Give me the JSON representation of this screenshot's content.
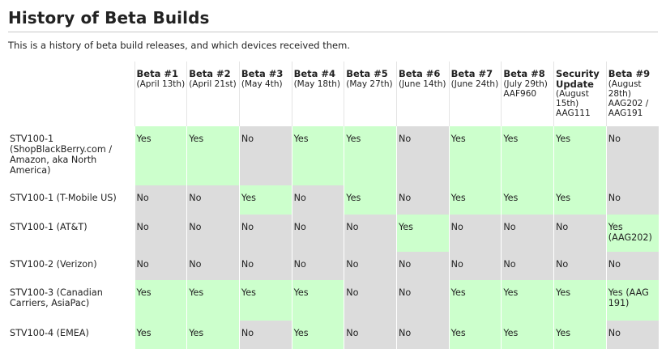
{
  "title": "History of Beta Builds",
  "intro": "This is a history of beta build releases, and which devices received them.",
  "builds": [
    {
      "name": "Beta #1",
      "detail": "(April 13th)"
    },
    {
      "name": "Beta #2",
      "detail": "(April 21st)"
    },
    {
      "name": "Beta #3",
      "detail": "(May 4th)"
    },
    {
      "name": "Beta #4",
      "detail": "(May 18th)"
    },
    {
      "name": "Beta #5",
      "detail": "(May 27th)"
    },
    {
      "name": "Beta #6",
      "detail": "(June 14th)"
    },
    {
      "name": "Beta #7",
      "detail": "(June 24th)"
    },
    {
      "name": "Beta #8",
      "detail": "(July 29th) AAF960"
    },
    {
      "name": "Security Update",
      "detail": "(August 15th) AAG111"
    },
    {
      "name": "Beta #9",
      "detail": "(August 28th) AAG202 / AAG191"
    }
  ],
  "devices": [
    {
      "name": "STV100-1 (ShopBlackBerry.com / Amazon, aka North America)",
      "cells": [
        "Yes",
        "Yes",
        "No",
        "Yes",
        "Yes",
        "No",
        "Yes",
        "Yes",
        "Yes",
        "No"
      ]
    },
    {
      "name": "STV100-1 (T-Mobile US)",
      "cells": [
        "No",
        "No",
        "Yes",
        "No",
        "Yes",
        "No",
        "Yes",
        "Yes",
        "Yes",
        "No"
      ]
    },
    {
      "name": "STV100-1 (AT&T)",
      "cells": [
        "No",
        "No",
        "No",
        "No",
        "No",
        "Yes",
        "No",
        "No",
        "No",
        "Yes (AAG202)"
      ]
    },
    {
      "name": "STV100-2 (Verizon)",
      "cells": [
        "No",
        "No",
        "No",
        "No",
        "No",
        "No",
        "No",
        "No",
        "No",
        "No"
      ]
    },
    {
      "name": "STV100-3 (Canadian Carriers, AsiaPac)",
      "cells": [
        "Yes",
        "Yes",
        "Yes",
        "Yes",
        "No",
        "No",
        "Yes",
        "Yes",
        "Yes",
        "Yes (AAG 191)"
      ]
    },
    {
      "name": "STV100-4 (EMEA)",
      "cells": [
        "Yes",
        "Yes",
        "No",
        "Yes",
        "No",
        "No",
        "Yes",
        "Yes",
        "Yes",
        "No"
      ]
    }
  ],
  "colors": {
    "yes": "#ccffcc",
    "no": "#dcdcdc"
  }
}
